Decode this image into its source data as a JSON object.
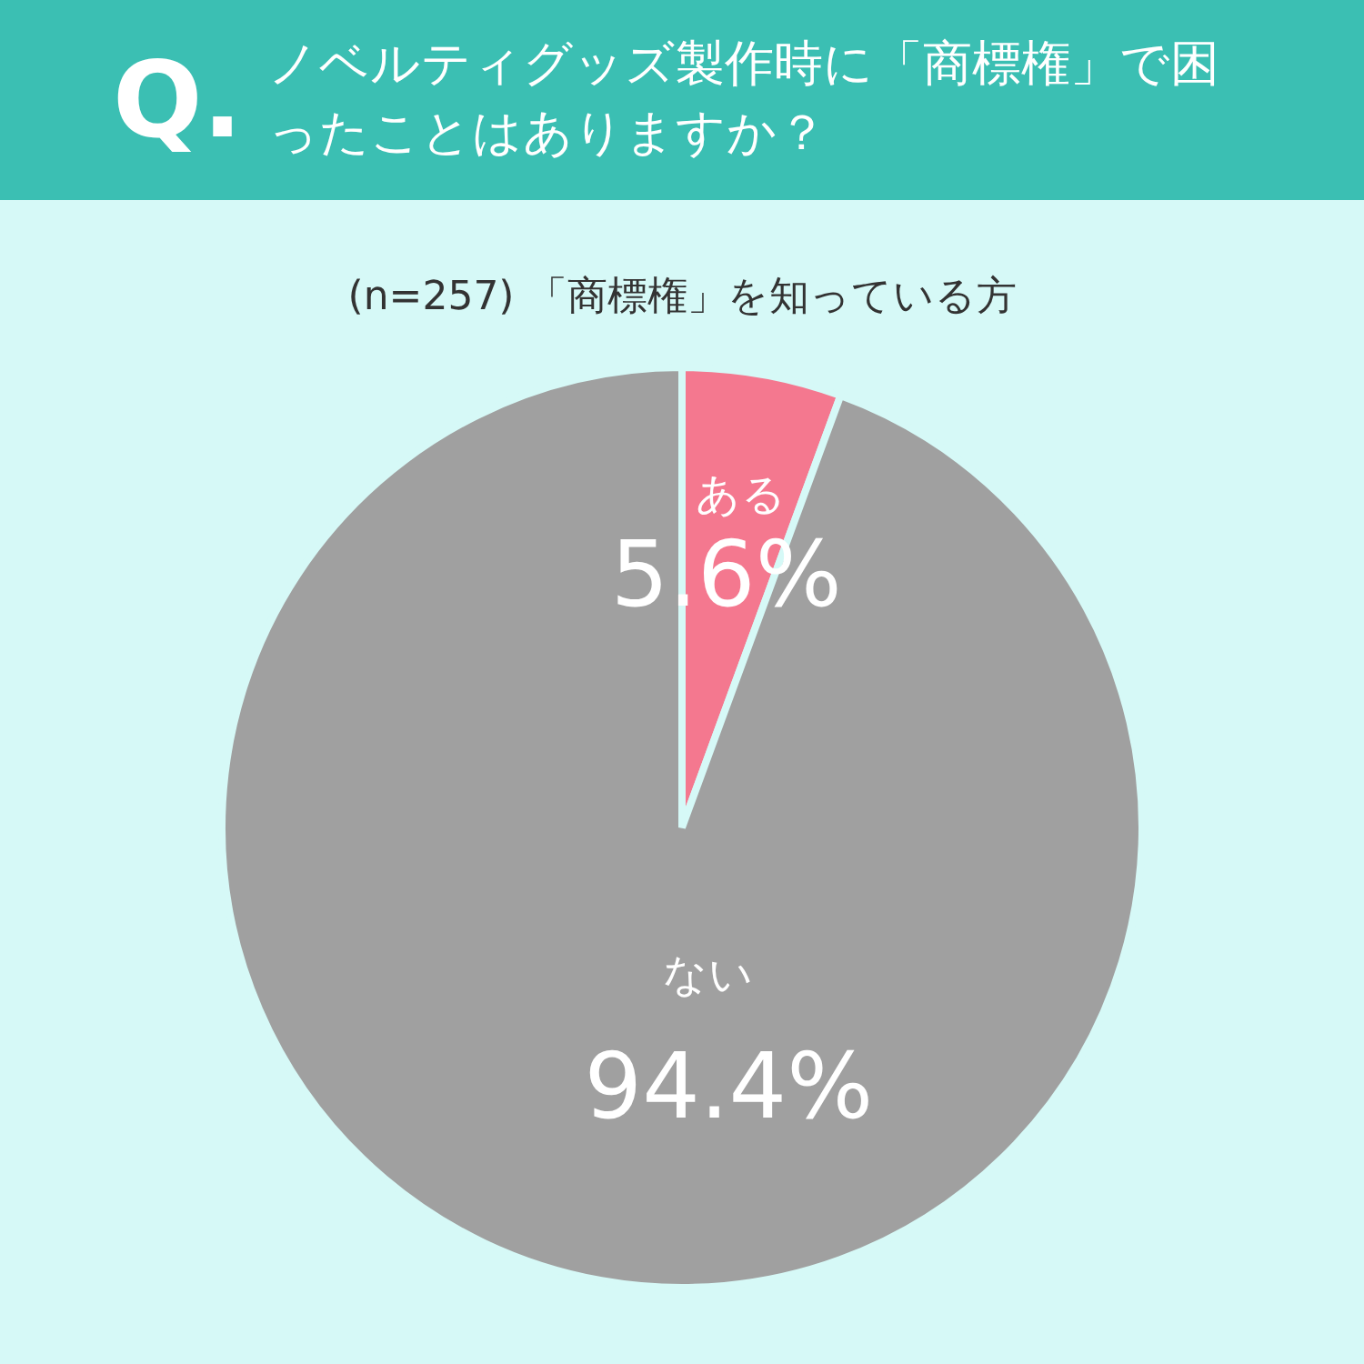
{
  "chart_data": {
    "type": "pie",
    "title": "ノベルティグッズ製作時に「商標権」で困ったことはありますか？",
    "subtitle": "(n=257) 「商標権」を知っている方",
    "annotations": [
      "Q."
    ],
    "categories": [
      "ある",
      "ない"
    ],
    "values": [
      5.6,
      94.4
    ],
    "colors": [
      "#f4788f",
      "#a0a0a0"
    ],
    "value_labels": [
      "5.6%",
      "94.4%"
    ]
  }
}
